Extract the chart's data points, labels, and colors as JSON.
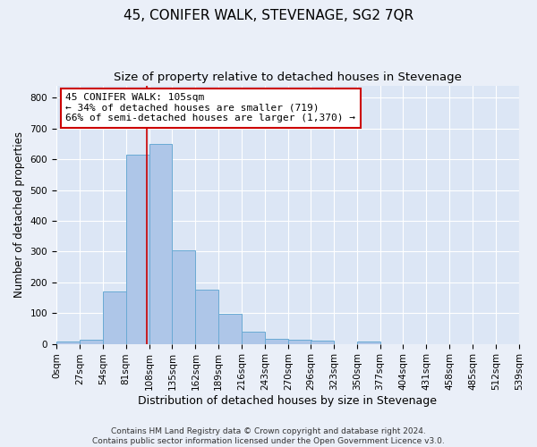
{
  "title": "45, CONIFER WALK, STEVENAGE, SG2 7QR",
  "subtitle": "Size of property relative to detached houses in Stevenage",
  "xlabel": "Distribution of detached houses by size in Stevenage",
  "ylabel": "Number of detached properties",
  "bin_edges": [
    0,
    27,
    54,
    81,
    108,
    135,
    162,
    189,
    216,
    243,
    270,
    296,
    323,
    350,
    377,
    404,
    431,
    458,
    485,
    512,
    539
  ],
  "bin_labels": [
    "0sqm",
    "27sqm",
    "54sqm",
    "81sqm",
    "108sqm",
    "135sqm",
    "162sqm",
    "189sqm",
    "216sqm",
    "243sqm",
    "270sqm",
    "296sqm",
    "323sqm",
    "350sqm",
    "377sqm",
    "404sqm",
    "431sqm",
    "458sqm",
    "485sqm",
    "512sqm",
    "539sqm"
  ],
  "counts": [
    8,
    13,
    170,
    615,
    650,
    305,
    175,
    98,
    40,
    15,
    13,
    10,
    0,
    8,
    0,
    0,
    0,
    0,
    0,
    0
  ],
  "bar_color": "#aec6e8",
  "bar_edgecolor": "#6aaad4",
  "property_size": 105,
  "vline_color": "#cc0000",
  "annotation_line1": "45 CONIFER WALK: 105sqm",
  "annotation_line2": "← 34% of detached houses are smaller (719)",
  "annotation_line3": "66% of semi-detached houses are larger (1,370) →",
  "annotation_box_color": "#ffffff",
  "annotation_box_edgecolor": "#cc0000",
  "ylim": [
    0,
    840
  ],
  "yticks": [
    0,
    100,
    200,
    300,
    400,
    500,
    600,
    700,
    800
  ],
  "background_color": "#eaeff8",
  "plot_background": "#dce6f5",
  "grid_color": "#ffffff",
  "footer": "Contains HM Land Registry data © Crown copyright and database right 2024.\nContains public sector information licensed under the Open Government Licence v3.0.",
  "title_fontsize": 11,
  "subtitle_fontsize": 9.5,
  "xlabel_fontsize": 9,
  "ylabel_fontsize": 8.5,
  "tick_fontsize": 7.5,
  "annotation_fontsize": 8,
  "footer_fontsize": 6.5
}
